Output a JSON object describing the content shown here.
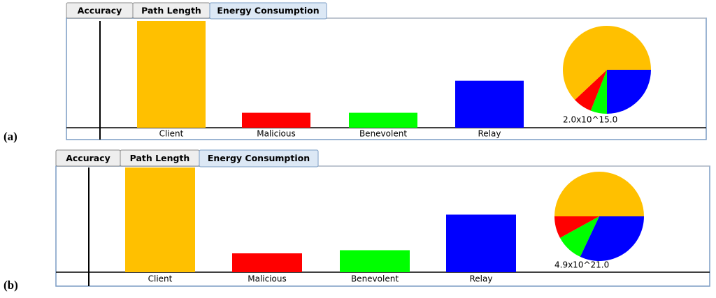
{
  "panels": [
    {
      "label": "(a)",
      "tabs": [
        "Accuracy",
        "Path Length",
        "Energy Consumption"
      ],
      "active_tab": 2
    },
    {
      "label": "(b)",
      "tabs": [
        "Accuracy",
        "Path Length",
        "Energy Consumption"
      ],
      "active_tab": 2
    }
  ],
  "chart_data": [
    {
      "type": "bar",
      "categories": [
        "Client",
        "Malicious",
        "Benevolent",
        "Relay"
      ],
      "values": [
        100,
        14,
        14,
        44
      ],
      "colors": [
        "#ffc000",
        "#ff0000",
        "#00ff00",
        "#0000ff"
      ],
      "ylim": [
        0,
        100
      ]
    },
    {
      "type": "pie",
      "values": [
        25,
        6,
        7,
        62
      ],
      "colors": [
        "#0000ff",
        "#00ff00",
        "#ff0000",
        "#ffc000"
      ],
      "caption": "2.0x10^15.0"
    },
    {
      "type": "bar",
      "categories": [
        "Client",
        "Malicious",
        "Benevolent",
        "Relay"
      ],
      "values": [
        100,
        18,
        21,
        55
      ],
      "colors": [
        "#ffc000",
        "#ff0000",
        "#00ff00",
        "#0000ff"
      ],
      "ylim": [
        0,
        100
      ]
    },
    {
      "type": "pie",
      "values": [
        32,
        10,
        8,
        50
      ],
      "colors": [
        "#0000ff",
        "#00ff00",
        "#ff0000",
        "#ffc000"
      ],
      "caption": "4.9x10^21.0"
    }
  ]
}
